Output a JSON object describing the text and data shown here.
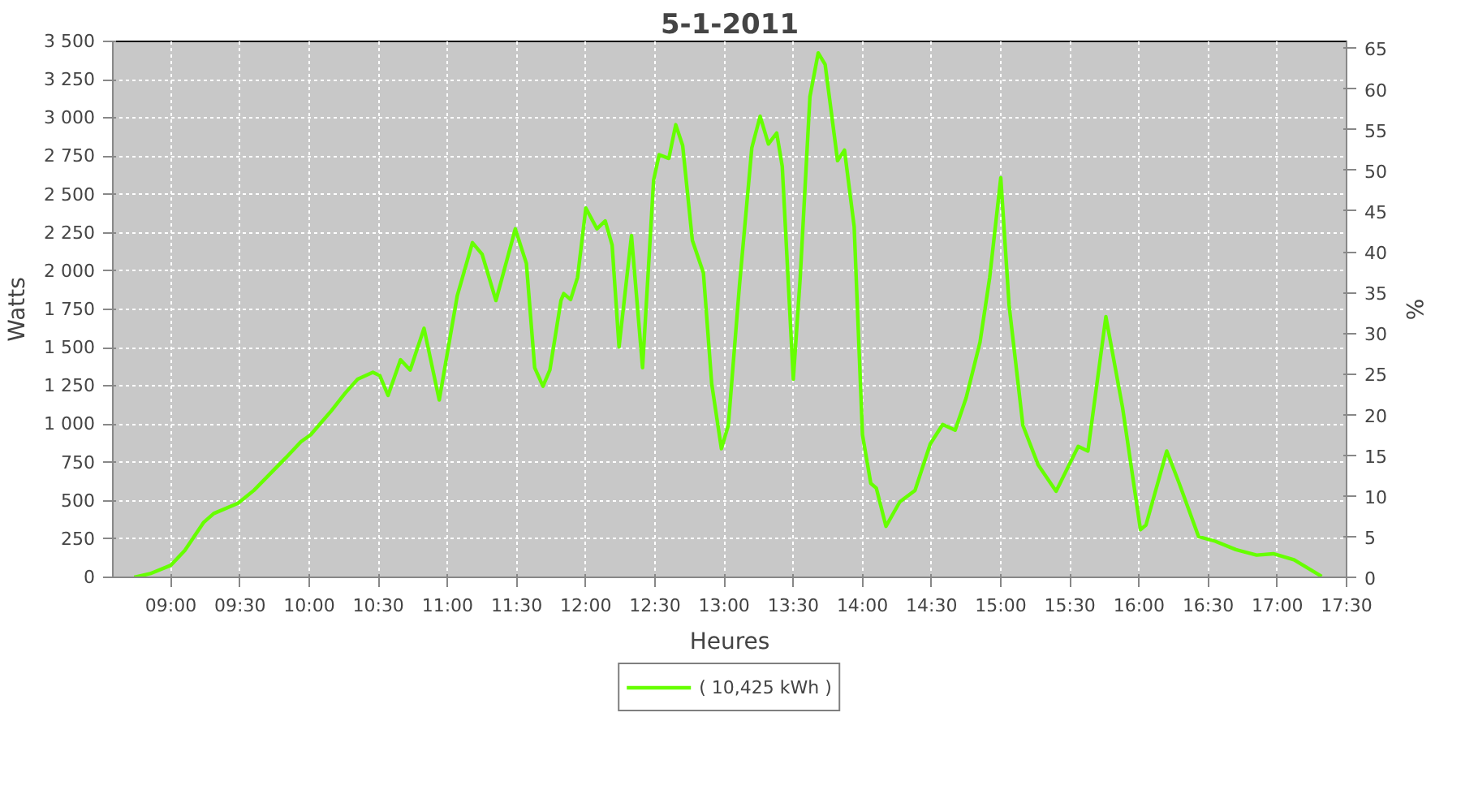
{
  "chart_data": {
    "type": "line",
    "title": "5-1-2011",
    "xlabel": "Heures",
    "ylabel": "Watts",
    "y2label": "%",
    "xlim": [
      8.58,
      17.5
    ],
    "ylim": [
      0,
      3500
    ],
    "y2lim": [
      0,
      65.84
    ],
    "xticks": [
      {
        "value": 9,
        "label": "09:00"
      },
      {
        "value": 9.5,
        "label": "09:30"
      },
      {
        "value": 10,
        "label": "10:00"
      },
      {
        "value": 10.5,
        "label": "10:30"
      },
      {
        "value": 11,
        "label": "11:00"
      },
      {
        "value": 11.5,
        "label": "11:30"
      },
      {
        "value": 12,
        "label": "12:00"
      },
      {
        "value": 12.5,
        "label": "12:30"
      },
      {
        "value": 13,
        "label": "13:00"
      },
      {
        "value": 13.5,
        "label": "13:30"
      },
      {
        "value": 14,
        "label": "14:00"
      },
      {
        "value": 14.5,
        "label": "14:30"
      },
      {
        "value": 15,
        "label": "15:00"
      },
      {
        "value": 15.5,
        "label": "15:30"
      },
      {
        "value": 16,
        "label": "16:00"
      },
      {
        "value": 16.5,
        "label": "16:30"
      },
      {
        "value": 17,
        "label": "17:00"
      },
      {
        "value": 17.5,
        "label": "17:30"
      }
    ],
    "yticks": [
      0,
      250,
      500,
      750,
      {
        "value": 1000,
        "label": "1 000"
      },
      {
        "value": 1250,
        "label": "1 250"
      },
      {
        "value": 1500,
        "label": "1 500"
      },
      {
        "value": 1750,
        "label": "1 750"
      },
      {
        "value": 2000,
        "label": "2 000"
      },
      {
        "value": 2250,
        "label": "2 250"
      },
      {
        "value": 2500,
        "label": "2 500"
      },
      {
        "value": 2750,
        "label": "2 750"
      },
      {
        "value": 3000,
        "label": "3 000"
      },
      {
        "value": 3250,
        "label": "3 250"
      },
      {
        "value": 3500,
        "label": "3 500"
      }
    ],
    "y2ticks": [
      0,
      5,
      10,
      15,
      20,
      25,
      30,
      35,
      40,
      45,
      50,
      55,
      60,
      65
    ],
    "grid": true,
    "legend": "bottom",
    "line_style": "solid",
    "series": [
      {
        "name": "( 10,425 kWh )",
        "color": "#66ff00",
        "x": [
          8.735,
          8.85,
          9.0,
          9.1,
          9.235,
          9.31,
          9.485,
          9.6,
          9.83,
          9.94,
          10.01,
          10.16,
          10.26,
          10.35,
          10.46,
          10.51,
          10.57,
          10.66,
          10.73,
          10.83,
          10.94,
          11.07,
          11.18,
          11.25,
          11.35,
          11.49,
          11.57,
          11.63,
          11.69,
          11.74,
          11.82,
          11.84,
          11.89,
          11.94,
          12.0,
          12.08,
          12.14,
          12.19,
          12.24,
          12.33,
          12.41,
          12.49,
          12.53,
          12.6,
          12.65,
          12.7,
          12.77,
          12.85,
          12.91,
          12.98,
          13.03,
          13.11,
          13.2,
          13.26,
          13.32,
          13.38,
          13.42,
          13.5,
          13.55,
          13.62,
          13.68,
          13.73,
          13.82,
          13.87,
          13.94,
          14.0,
          14.06,
          14.1,
          14.17,
          14.27,
          14.38,
          14.49,
          14.58,
          14.67,
          14.75,
          14.85,
          14.92,
          15.0,
          15.06,
          15.16,
          15.27,
          15.4,
          15.56,
          15.63,
          15.76,
          15.88,
          16.01,
          16.05,
          16.2,
          16.29,
          16.43,
          16.55,
          16.7,
          16.85,
          16.97,
          17.12,
          17.32
        ],
        "values": [
          0,
          24,
          79,
          175,
          357,
          417,
          484,
          568,
          780,
          886,
          931,
          1088,
          1203,
          1294,
          1339,
          1318,
          1188,
          1421,
          1354,
          1626,
          1158,
          1838,
          2186,
          2110,
          1808,
          2276,
          2050,
          1369,
          1248,
          1354,
          1808,
          1853,
          1814,
          1959,
          2412,
          2276,
          2328,
          2170,
          1505,
          2231,
          1369,
          2594,
          2760,
          2736,
          2956,
          2820,
          2201,
          1989,
          1264,
          840,
          992,
          1899,
          2805,
          3011,
          2830,
          2902,
          2684,
          1294,
          1959,
          3138,
          3425,
          3350,
          2721,
          2790,
          2291,
          931,
          614,
          583,
          333,
          493,
          568,
          871,
          998,
          961,
          1173,
          1536,
          1959,
          2609,
          1778,
          992,
          735,
          562,
          855,
          825,
          1702,
          1112,
          311,
          342,
          825,
          614,
          266,
          236,
          181,
          145,
          154,
          115,
          6
        ]
      }
    ]
  }
}
